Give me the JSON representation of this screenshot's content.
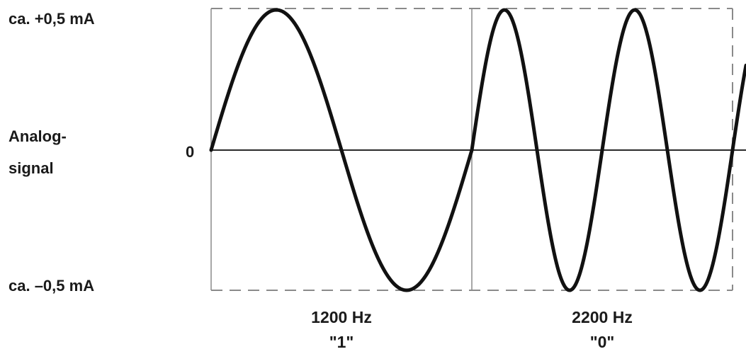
{
  "labels": {
    "max_current": "ca. +0,5 mA",
    "min_current": "ca. –0,5 mA",
    "signal_line1": "Analog-",
    "signal_line2": "signal",
    "zero": "0"
  },
  "sections": [
    {
      "frequency": "1200 Hz",
      "bit": "\"1\"",
      "cycles": 1
    },
    {
      "frequency": "2200 Hz",
      "bit": "\"0\"",
      "cycles": 2
    }
  ],
  "colors": {
    "wave": "#111111",
    "frame": "#8a8a8a",
    "axis": "#2a2a2a"
  }
}
